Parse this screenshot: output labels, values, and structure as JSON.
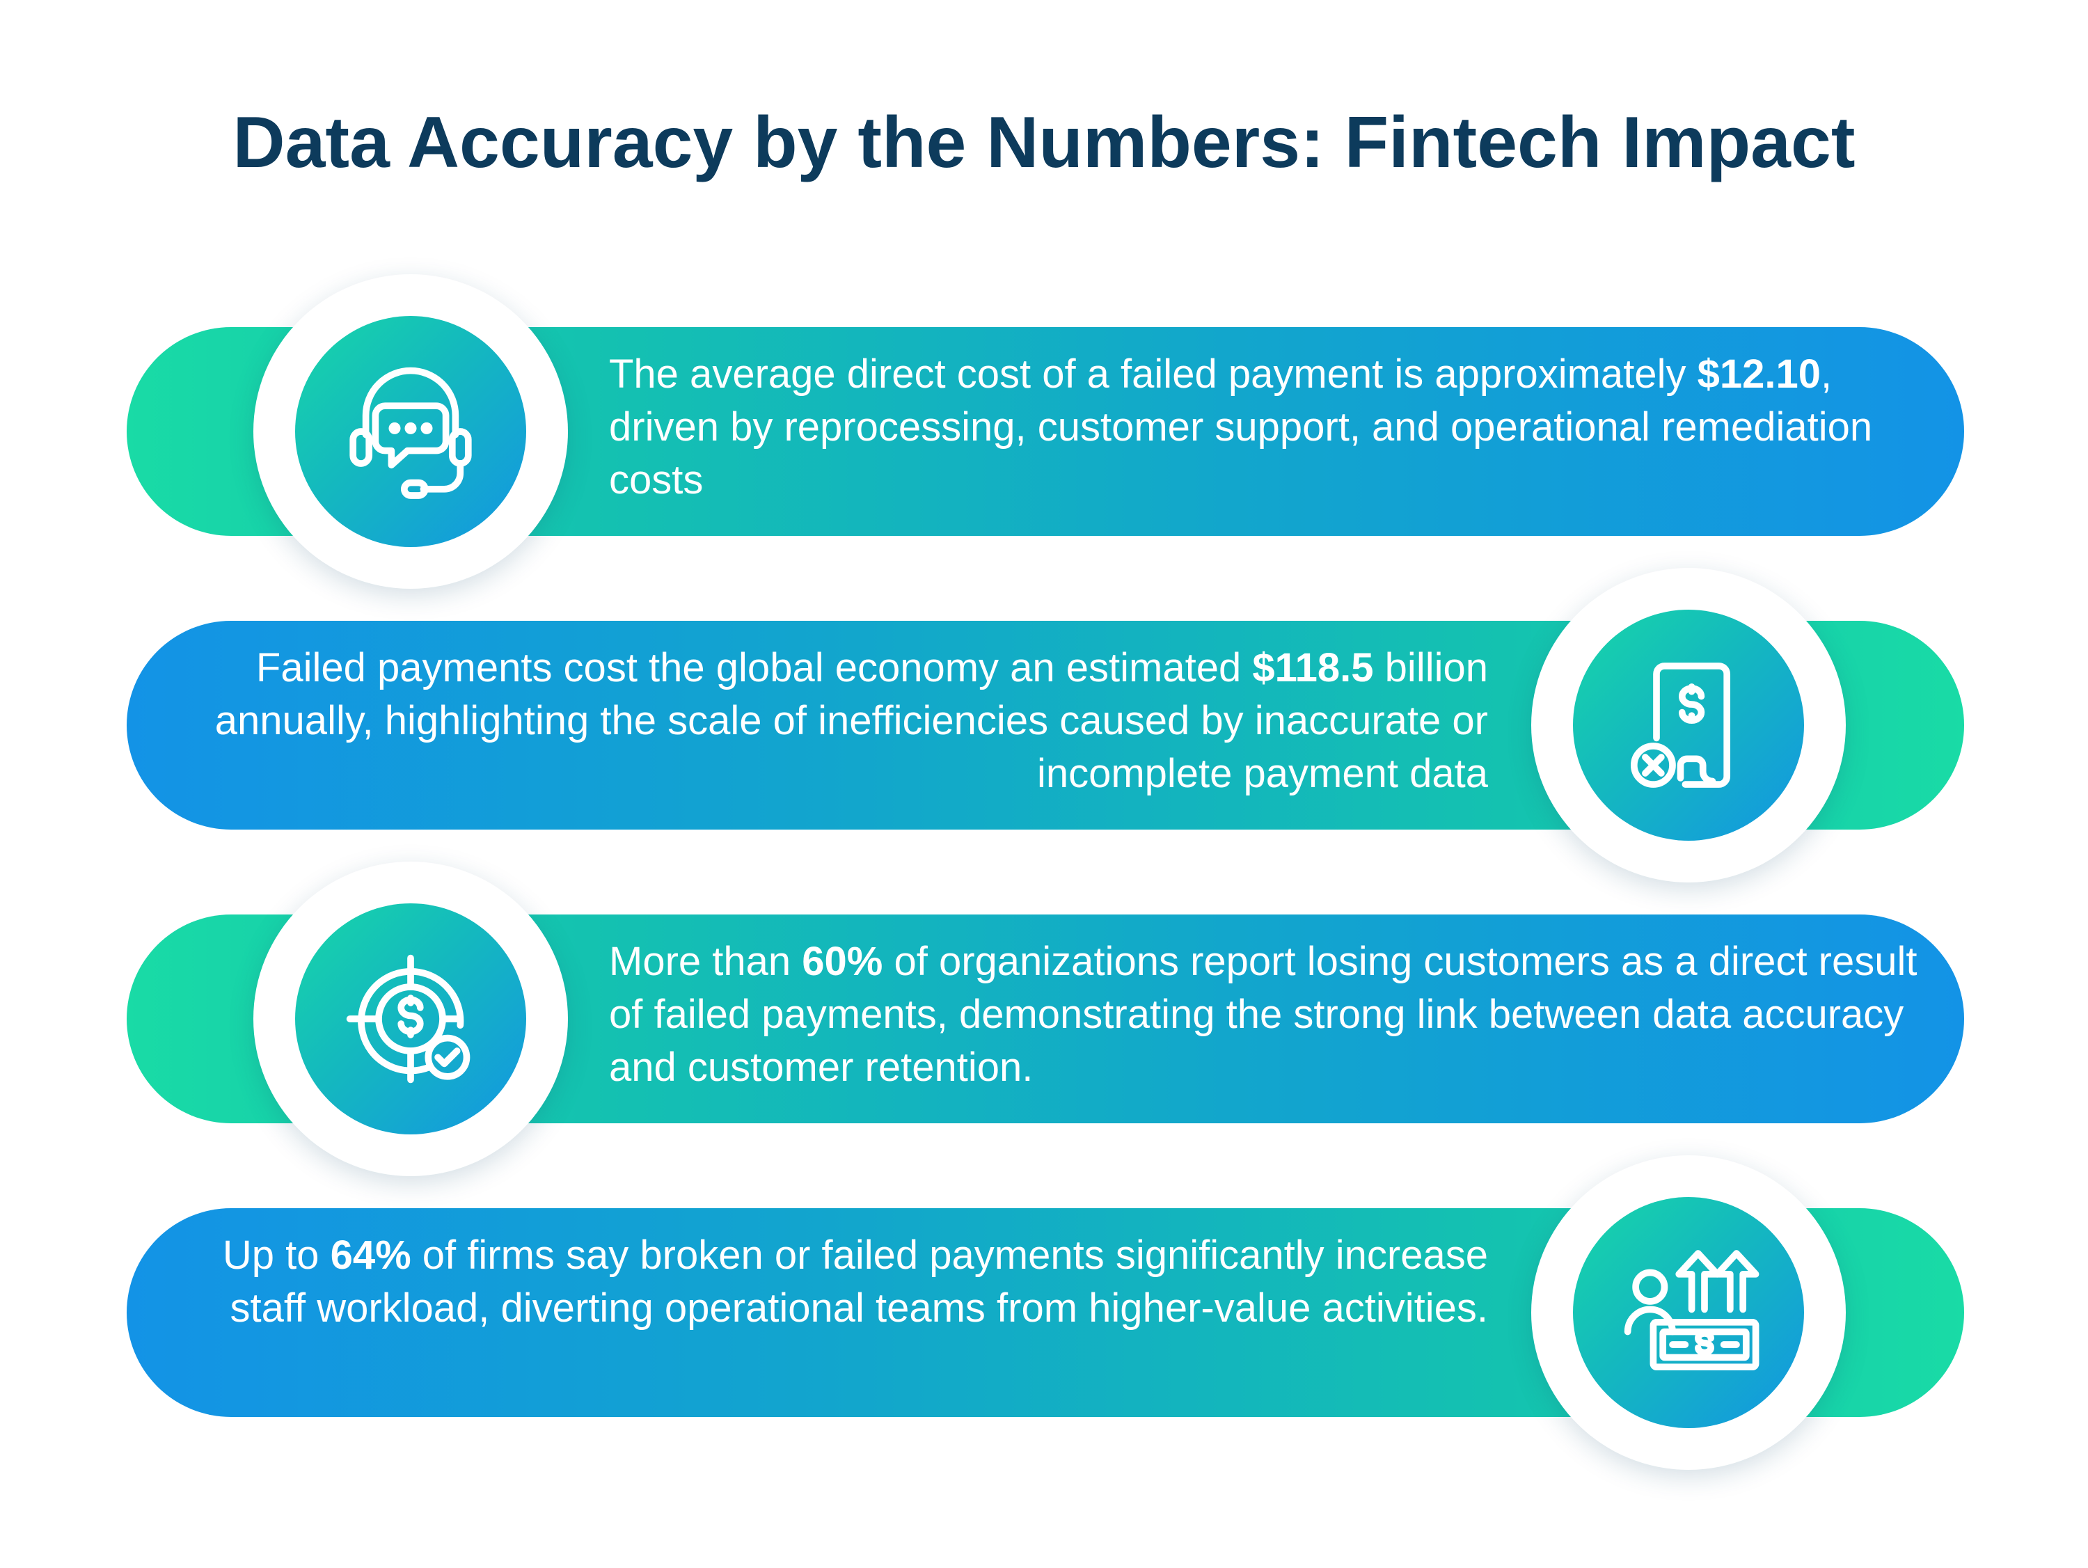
{
  "title": "Data Accuracy by the Numbers: Fintech Impact",
  "colors": {
    "title": "#0d3b5c",
    "green": "#19dba6",
    "blue": "#1393e6",
    "white": "#ffffff"
  },
  "stats": [
    {
      "icon": "headset-chat-icon",
      "before": "The average direct cost of a failed payment is approximately ",
      "highlight": "$12.10",
      "after": ", driven by reprocessing, customer support, and operational remediation costs"
    },
    {
      "icon": "failed-invoice-icon",
      "before": "Failed payments cost the global economy an estimated ",
      "highlight": "$118.5",
      "after": " billion annually, highlighting the scale of inefficiencies caused by inaccurate or incomplete payment data"
    },
    {
      "icon": "target-dollar-check-icon",
      "before": "More than ",
      "highlight": "60%",
      "after": " of organizations report losing customers as a direct result of failed payments, demonstrating the strong link between data accuracy and customer retention."
    },
    {
      "icon": "staff-workload-icon",
      "before": "Up to ",
      "highlight": "64%",
      "after": " of firms say broken or failed payments significantly increase staff workload, diverting operational teams from higher-value activities."
    }
  ]
}
